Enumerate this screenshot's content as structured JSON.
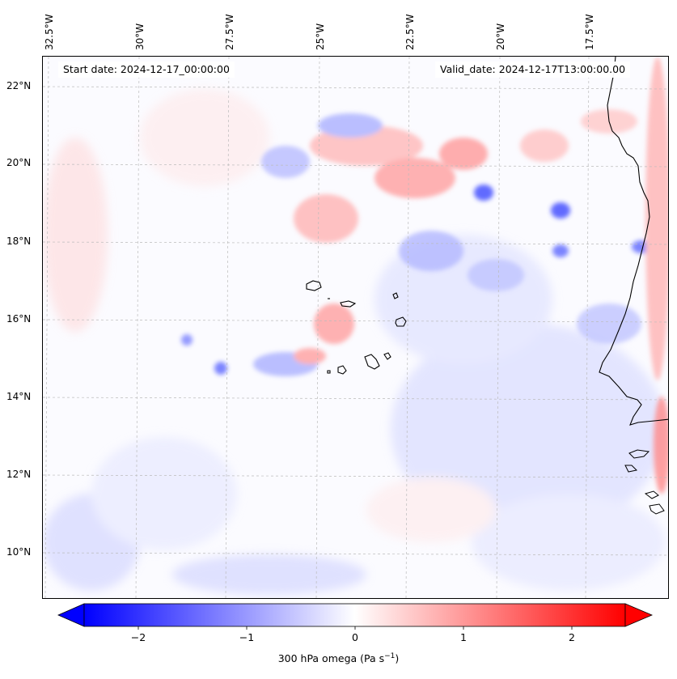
{
  "map": {
    "start_date": "Start date: 2024-12-17_00:00:00",
    "valid_date": "Valid_date: 2024-12-17T13:00:00.00",
    "lon_labels": [
      "32.5°W",
      "30°W",
      "27.5°W",
      "25°W",
      "22.5°W",
      "20°W",
      "17.5°W"
    ],
    "lat_labels": [
      "22°N",
      "20°N",
      "18°N",
      "16°N",
      "14°N",
      "12°N",
      "10°N"
    ]
  },
  "colorbar": {
    "label": "300 hPa omega (Pa s",
    "label_exp": "−1",
    "label_close": ")",
    "ticks": [
      "−2",
      "−1",
      "0",
      "1",
      "2"
    ],
    "range": [
      -2.5,
      2.5
    ],
    "colors": {
      "neg": "#0000ff",
      "mid": "#ffffff",
      "pos": "#ff0000"
    }
  }
}
